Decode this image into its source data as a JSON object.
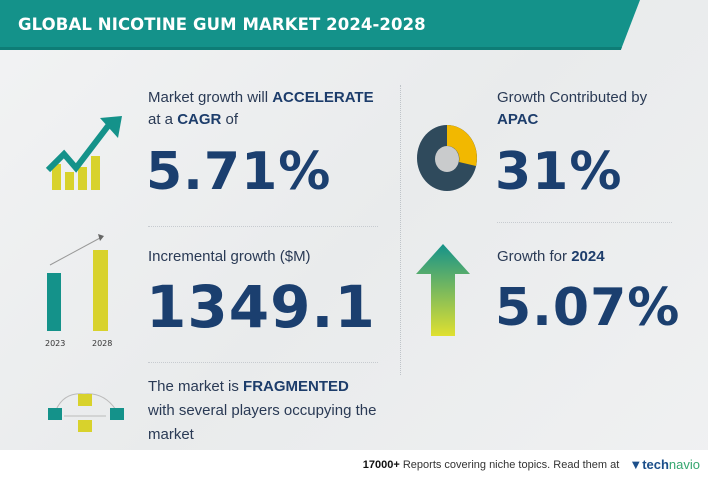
{
  "header": {
    "title": "GLOBAL NICOTINE GUM MARKET 2024-2028"
  },
  "cagr": {
    "line1_pre": "Market growth will ",
    "line1_bold": "ACCELERATE",
    "line2_pre": "at a ",
    "line2_bold": "CAGR",
    "line2_post": " of",
    "value": "5.71%",
    "icon": "trend-chart-icon"
  },
  "incremental": {
    "label": "Incremental growth ($M)",
    "value": "1349.1",
    "bar_years": [
      "2023",
      "2028"
    ],
    "icon": "bar-comparison-icon"
  },
  "fragmented": {
    "line1_pre": "The market is ",
    "line1_bold": "FRAGMENTED",
    "line2": "with several players occupying the",
    "line3": "market",
    "icon": "players-network-icon"
  },
  "region": {
    "label": "Growth Contributed by",
    "region": "APAC",
    "value": "31%",
    "share_percent": 31,
    "icon": "donut-chart-icon"
  },
  "yoy": {
    "label_pre": "Growth for ",
    "year": "2024",
    "value": "5.07%",
    "icon": "up-arrow-icon"
  },
  "footer": {
    "count": "17000+",
    "text": "Reports covering niche topics. Read them at",
    "logo_a": "tech",
    "logo_b": "navio"
  },
  "colors": {
    "teal": "#14928a",
    "navy": "#1b3f6f",
    "yellow": "#d8d22c",
    "amber": "#f2b800"
  }
}
